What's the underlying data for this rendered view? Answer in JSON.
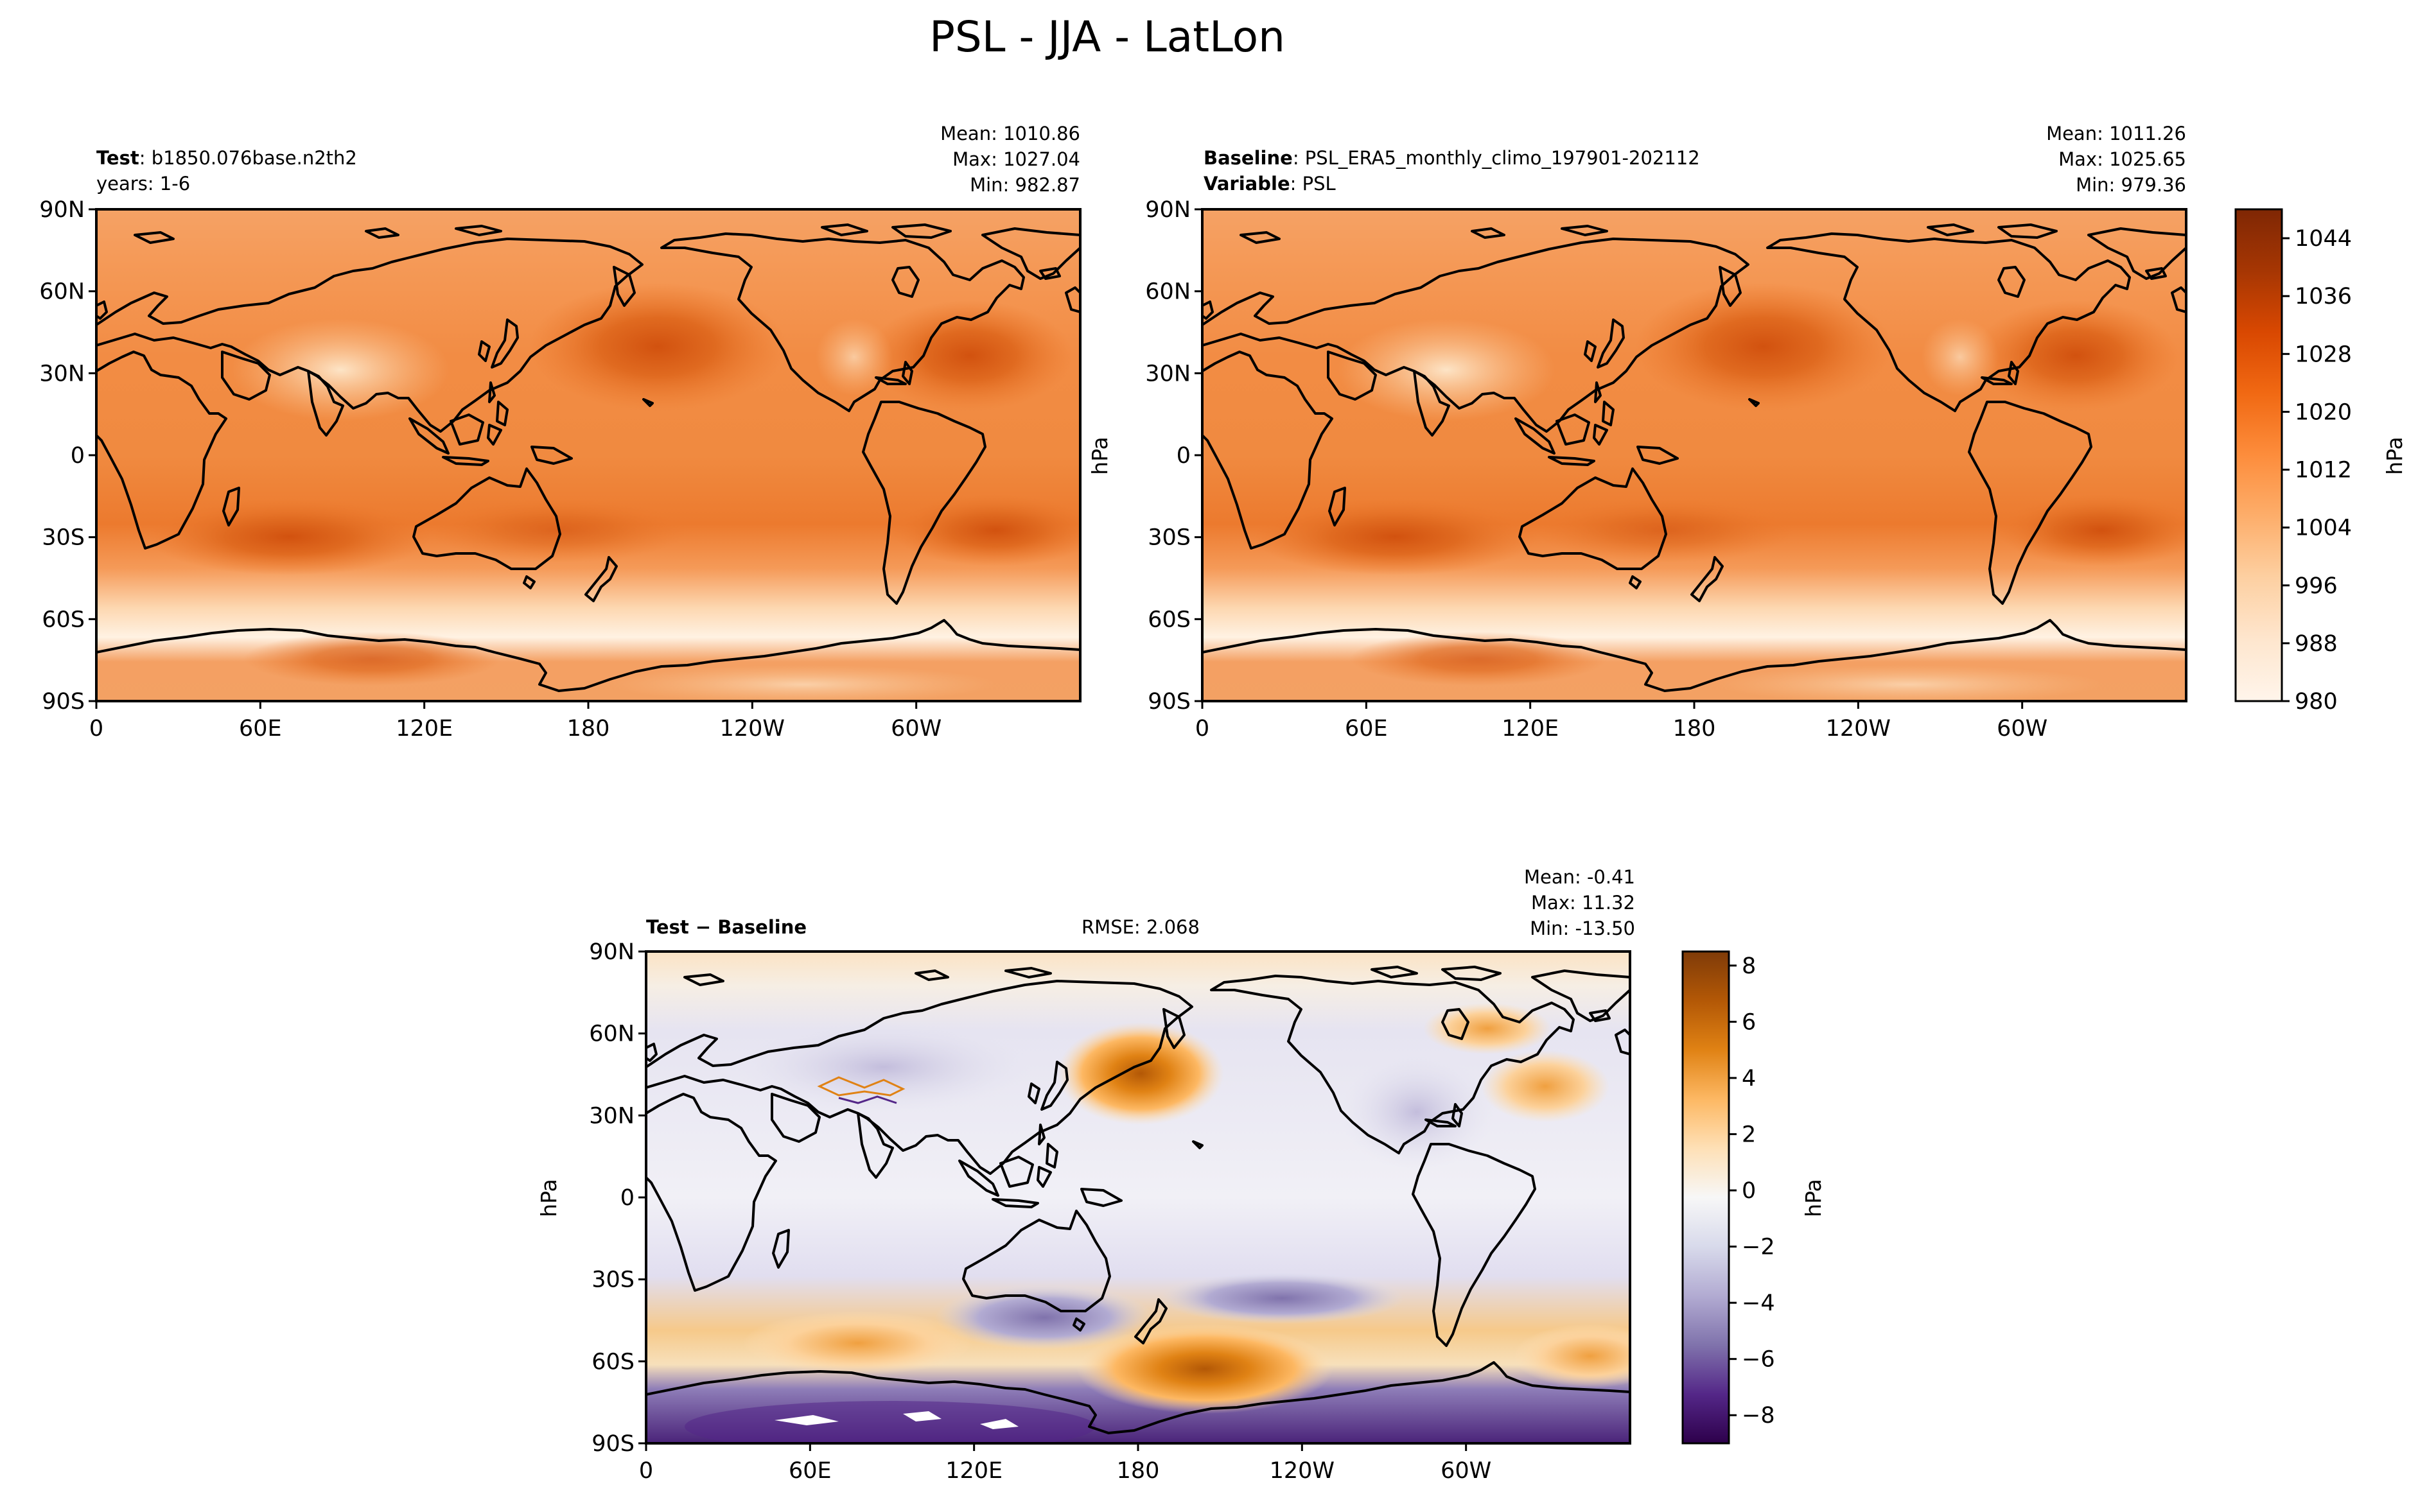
{
  "figure": {
    "title": "PSL - JJA - LatLon"
  },
  "axes": {
    "lat_ticks": [
      "90N",
      "60N",
      "30N",
      "0",
      "30S",
      "60S",
      "90S"
    ],
    "lon_ticks": [
      "0",
      "60E",
      "120E",
      "180",
      "120W",
      "60W"
    ]
  },
  "panels": {
    "test": {
      "head1_bold": "Test",
      "head1_text": ": b1850.076base.n2th2",
      "head2_text": "years: 1-6",
      "stats": [
        "Mean: 1010.86",
        "Max: 1027.04",
        "Min: 982.87"
      ]
    },
    "baseline": {
      "head1_bold": "Baseline",
      "head1_text": ": PSL_ERA5_monthly_climo_197901-202112",
      "head2_bold": "Variable",
      "head2_text": ": PSL",
      "stats": [
        "Mean: 1011.26",
        "Max: 1025.65",
        "Min: 979.36"
      ],
      "ylabel": "hPa"
    },
    "diff": {
      "head_bold": "Test − Baseline",
      "rmse": "RMSE: 2.068",
      "stats": [
        "Mean: -0.41",
        "Max: 11.32",
        "Min: -13.50"
      ],
      "ylabel": "hPa"
    }
  },
  "colorbars": {
    "main": {
      "label": "hPa",
      "tick_values": [
        980,
        988,
        996,
        1004,
        1012,
        1020,
        1028,
        1036,
        1044
      ],
      "tick_labels": [
        "980",
        "988",
        "996",
        "1004",
        "1012",
        "1020",
        "1028",
        "1036",
        "1044"
      ],
      "range": [
        980,
        1048
      ],
      "colors": [
        "#fff5eb",
        "#fee6ce",
        "#fdd0a2",
        "#fdae6b",
        "#fd8d3c",
        "#f16913",
        "#d94801",
        "#a63603",
        "#7f2704"
      ]
    },
    "diff": {
      "label": "hPa",
      "tick_values": [
        -8,
        -6,
        -4,
        -2,
        0,
        2,
        4,
        6,
        8
      ],
      "tick_labels": [
        "−8",
        "−6",
        "−4",
        "−2",
        "0",
        "2",
        "4",
        "6",
        "8"
      ],
      "range": [
        -9,
        8.5
      ],
      "colors": [
        "#2d004b",
        "#542788",
        "#8073ac",
        "#b2abd2",
        "#d8daeb",
        "#f7f7f7",
        "#fee0b6",
        "#fdb863",
        "#e08214",
        "#b35806",
        "#7f3b08"
      ]
    }
  }
}
